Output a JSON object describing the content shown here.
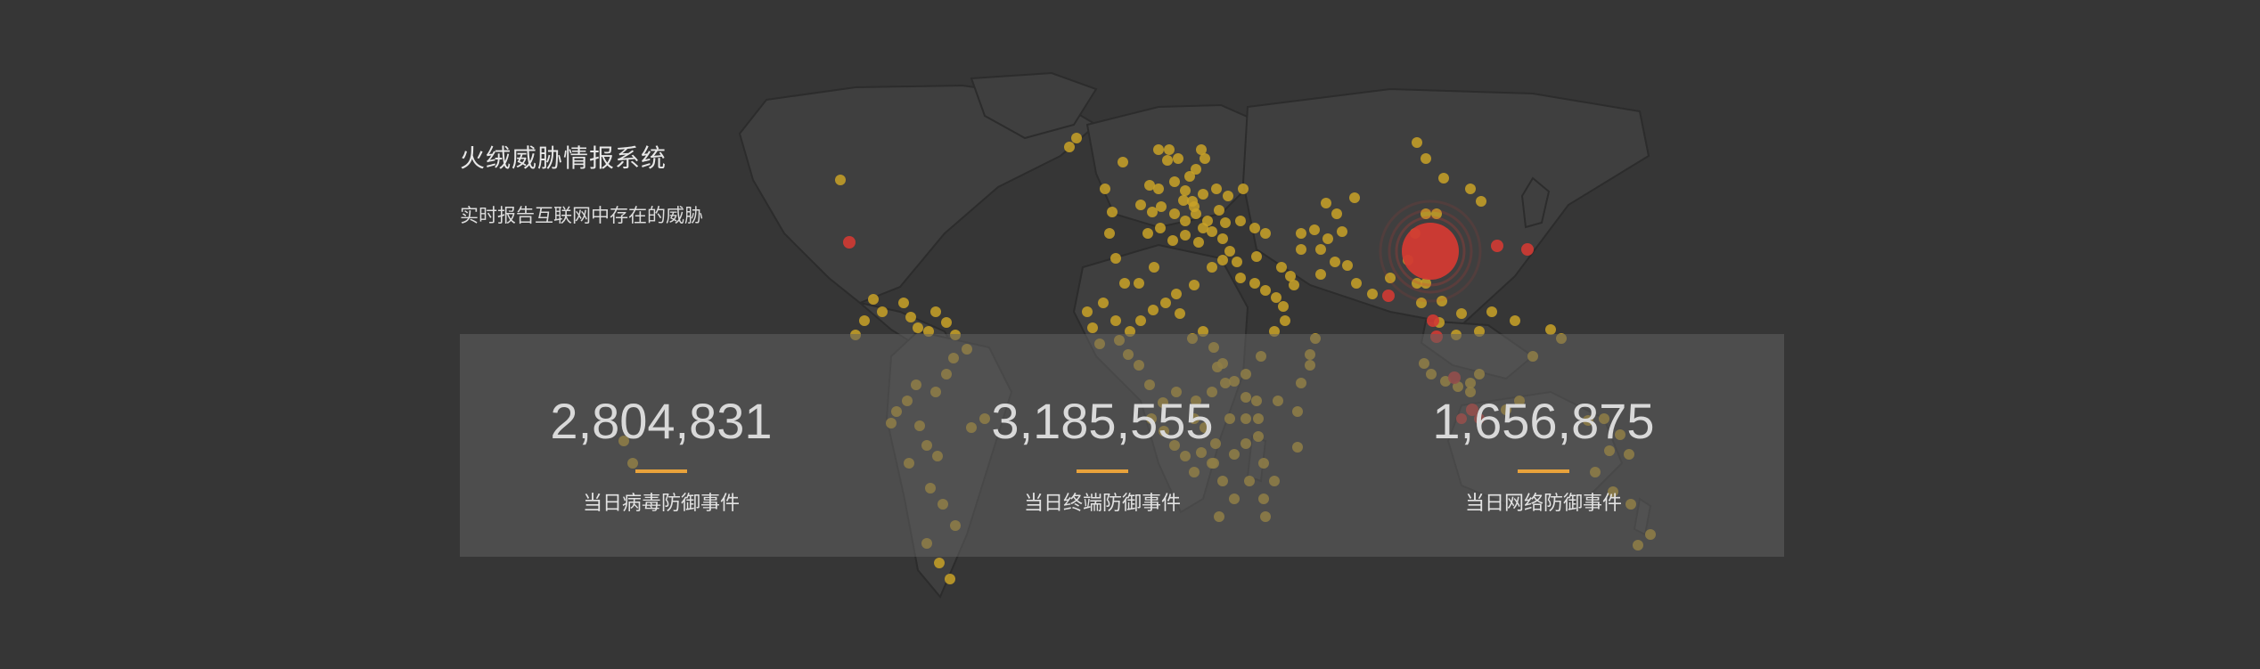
{
  "header": {
    "title": "火绒威胁情报系统",
    "subtitle": "实时报告互联网中存在的威胁"
  },
  "stats": [
    {
      "value": "2,804,831",
      "label": "当日病毒防御事件"
    },
    {
      "value": "3,185,555",
      "label": "当日终端防御事件"
    },
    {
      "value": "1,656,875",
      "label": "当日网络防御事件"
    }
  ],
  "colors": {
    "background": "#363636",
    "land": "#3f3f3f",
    "border": "#2c2c2c",
    "dot_normal": "#c9a227",
    "dot_alert": "#d23a33",
    "accent_bar": "#e8a23b"
  }
}
